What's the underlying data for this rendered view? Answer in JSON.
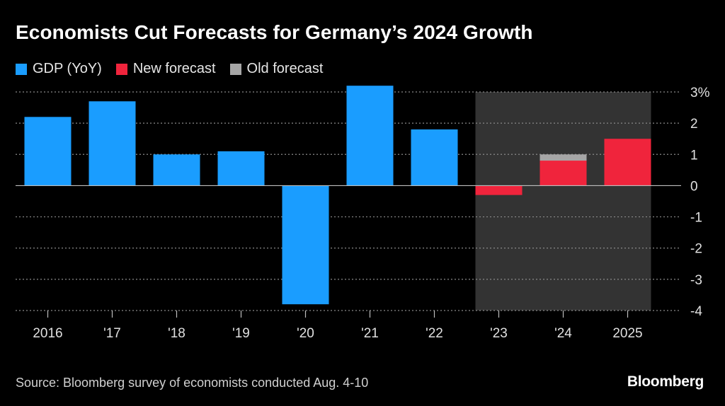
{
  "title": "Economists Cut Forecasts for Germany’s 2024 Growth",
  "legend": [
    {
      "label": "GDP (YoY)",
      "color": "#1a9dff"
    },
    {
      "label": "New forecast",
      "color": "#f0243c"
    },
    {
      "label": "Old forecast",
      "color": "#a6a6a6"
    }
  ],
  "source": "Source: Bloomberg survey of economists conducted Aug. 4-10",
  "brand": "Bloomberg",
  "chart_data": {
    "type": "bar",
    "categories": [
      "2016",
      "'17",
      "'18",
      "'19",
      "'20",
      "'21",
      "'22",
      "'23",
      "'24",
      "2025"
    ],
    "series": [
      {
        "name": "GDP (YoY)",
        "values": [
          2.2,
          2.7,
          1.0,
          1.1,
          -3.8,
          3.2,
          1.8,
          null,
          null,
          null
        ]
      },
      {
        "name": "New forecast",
        "values": [
          null,
          null,
          null,
          null,
          null,
          null,
          null,
          -0.3,
          0.8,
          1.5
        ]
      },
      {
        "name": "Old forecast",
        "values": [
          null,
          null,
          null,
          null,
          null,
          null,
          null,
          null,
          1.0,
          null
        ]
      }
    ],
    "y_ticks": [
      "3%",
      "2",
      "1",
      "0",
      "-1",
      "-2",
      "-3",
      "-4"
    ],
    "ylim": [
      -4,
      3
    ],
    "shaded_forecast_categories": [
      "'23",
      "'24",
      "2025"
    ],
    "grid": true
  }
}
